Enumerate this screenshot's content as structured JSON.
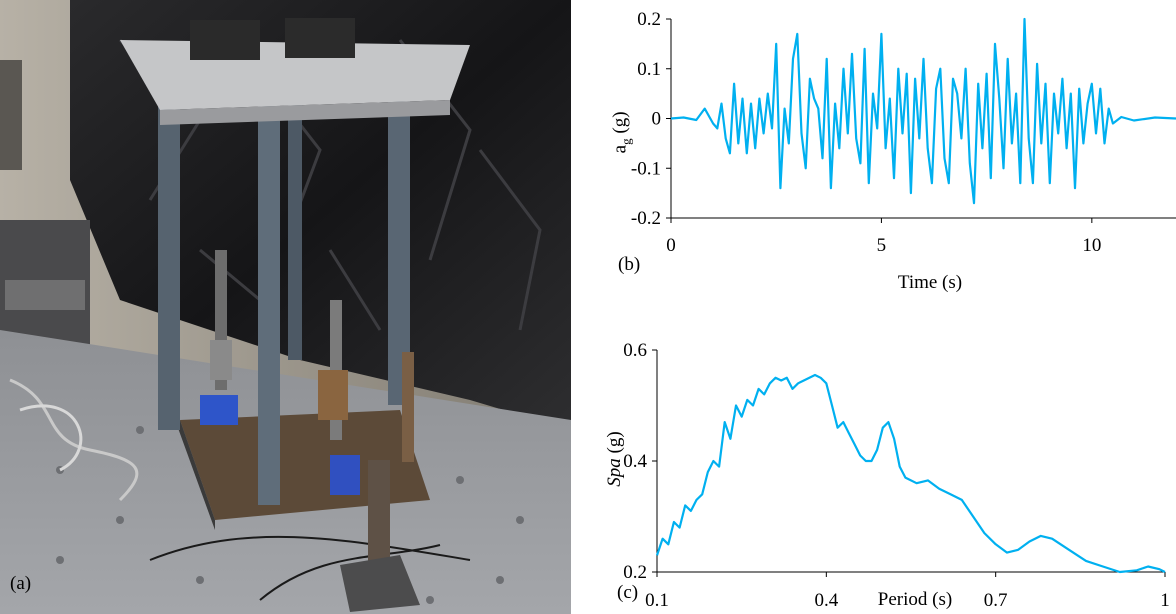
{
  "panels": {
    "a_label": "(a)",
    "b_label": "(b)",
    "c_label": "(c)"
  },
  "photo": {
    "description_icon": "shake-table-test-frame-photo"
  },
  "chart_data": [
    {
      "type": "line",
      "title": "",
      "xlabel": "Time (s)",
      "ylabel_main": "a",
      "ylabel_sub": "g",
      "ylabel_unit": " (g)",
      "xlim": [
        0,
        12
      ],
      "ylim": [
        -0.2,
        0.2
      ],
      "xticks": [
        0,
        5,
        10
      ],
      "xtick_labels": [
        "0",
        "5",
        "10"
      ],
      "yticks": [
        0.2,
        0.1,
        0,
        -0.1,
        -0.2
      ],
      "ytick_labels": [
        "0.2",
        "0.1",
        "0",
        "-0.1",
        "-0.2"
      ],
      "color": "#00b0f0",
      "series": [
        {
          "x": [
            0,
            0.3,
            0.6,
            0.8,
            1.0,
            1.1,
            1.2,
            1.3,
            1.4,
            1.5,
            1.6,
            1.7,
            1.8,
            1.9,
            2.0,
            2.1,
            2.2,
            2.3,
            2.4,
            2.5,
            2.6,
            2.7,
            2.8,
            2.9,
            3.0,
            3.1,
            3.2,
            3.3,
            3.4,
            3.5,
            3.6,
            3.7,
            3.8,
            3.9,
            4.0,
            4.1,
            4.2,
            4.3,
            4.4,
            4.5,
            4.6,
            4.7,
            4.8,
            4.9,
            5.0,
            5.1,
            5.2,
            5.3,
            5.4,
            5.5,
            5.6,
            5.7,
            5.8,
            5.9,
            6.0,
            6.1,
            6.2,
            6.3,
            6.4,
            6.5,
            6.6,
            6.7,
            6.8,
            6.9,
            7.0,
            7.1,
            7.2,
            7.3,
            7.4,
            7.5,
            7.6,
            7.7,
            7.8,
            7.9,
            8.0,
            8.1,
            8.2,
            8.3,
            8.4,
            8.5,
            8.6,
            8.7,
            8.8,
            8.9,
            9.0,
            9.1,
            9.2,
            9.3,
            9.4,
            9.5,
            9.6,
            9.7,
            9.8,
            9.9,
            10.0,
            10.1,
            10.2,
            10.3,
            10.4,
            10.5,
            10.7,
            11.0,
            11.5,
            12.0
          ],
          "y": [
            0.0,
            0.002,
            -0.003,
            0.02,
            -0.01,
            -0.02,
            0.03,
            -0.04,
            -0.07,
            0.07,
            -0.05,
            0.04,
            -0.07,
            0.03,
            -0.06,
            0.04,
            -0.03,
            0.05,
            -0.02,
            0.15,
            -0.14,
            0.02,
            -0.05,
            0.12,
            0.17,
            -0.03,
            -0.1,
            0.08,
            0.04,
            0.02,
            -0.08,
            0.12,
            -0.14,
            0.03,
            -0.06,
            0.1,
            -0.03,
            0.13,
            -0.04,
            -0.09,
            0.14,
            -0.13,
            0.05,
            -0.02,
            0.17,
            -0.06,
            0.04,
            -0.12,
            0.1,
            -0.03,
            0.09,
            -0.15,
            0.08,
            -0.04,
            0.12,
            -0.06,
            -0.13,
            0.06,
            0.1,
            -0.08,
            -0.13,
            0.08,
            0.05,
            -0.04,
            0.1,
            -0.09,
            -0.17,
            0.07,
            -0.06,
            0.09,
            -0.12,
            0.15,
            0.04,
            -0.1,
            0.12,
            -0.05,
            0.05,
            -0.13,
            0.2,
            -0.04,
            -0.13,
            0.11,
            -0.05,
            0.07,
            -0.13,
            0.05,
            -0.03,
            0.08,
            -0.06,
            0.05,
            -0.14,
            0.06,
            -0.05,
            0.03,
            0.07,
            -0.03,
            0.06,
            -0.05,
            0.02,
            -0.01,
            0.003,
            -0.004,
            0.002,
            0.0
          ]
        }
      ]
    },
    {
      "type": "line",
      "title": "",
      "xlabel": "Period (s)",
      "ylabel": "Spa (g)",
      "ylabel_italic": "Spa",
      "ylabel_unit": " (g)",
      "xlim": [
        0.1,
        1.0
      ],
      "ylim": [
        0.2,
        0.6
      ],
      "xticks": [
        0.1,
        0.4,
        0.7,
        1.0
      ],
      "xtick_labels": [
        "0.1",
        "0.4",
        "0.7",
        "1"
      ],
      "yticks": [
        0.6,
        0.4,
        0.2
      ],
      "ytick_labels": [
        "0.6",
        "0.4",
        "0.2"
      ],
      "color": "#00b0f0",
      "series": [
        {
          "x": [
            0.1,
            0.11,
            0.12,
            0.13,
            0.14,
            0.15,
            0.16,
            0.17,
            0.18,
            0.19,
            0.2,
            0.21,
            0.22,
            0.23,
            0.24,
            0.25,
            0.26,
            0.27,
            0.28,
            0.29,
            0.3,
            0.31,
            0.32,
            0.33,
            0.34,
            0.35,
            0.36,
            0.37,
            0.38,
            0.39,
            0.4,
            0.41,
            0.42,
            0.43,
            0.44,
            0.45,
            0.46,
            0.47,
            0.48,
            0.49,
            0.5,
            0.51,
            0.52,
            0.53,
            0.54,
            0.56,
            0.58,
            0.6,
            0.62,
            0.64,
            0.66,
            0.68,
            0.7,
            0.72,
            0.74,
            0.76,
            0.78,
            0.8,
            0.83,
            0.86,
            0.89,
            0.92,
            0.95,
            0.97,
            0.99,
            1.0
          ],
          "y": [
            0.23,
            0.26,
            0.25,
            0.29,
            0.28,
            0.32,
            0.31,
            0.33,
            0.34,
            0.38,
            0.4,
            0.39,
            0.47,
            0.44,
            0.5,
            0.48,
            0.51,
            0.5,
            0.53,
            0.52,
            0.54,
            0.55,
            0.545,
            0.55,
            0.53,
            0.54,
            0.545,
            0.55,
            0.555,
            0.55,
            0.54,
            0.5,
            0.46,
            0.47,
            0.45,
            0.43,
            0.41,
            0.4,
            0.4,
            0.42,
            0.46,
            0.47,
            0.44,
            0.39,
            0.37,
            0.36,
            0.365,
            0.35,
            0.34,
            0.33,
            0.3,
            0.27,
            0.25,
            0.235,
            0.24,
            0.255,
            0.265,
            0.26,
            0.24,
            0.22,
            0.21,
            0.2,
            0.203,
            0.21,
            0.205,
            0.2
          ]
        }
      ]
    }
  ]
}
